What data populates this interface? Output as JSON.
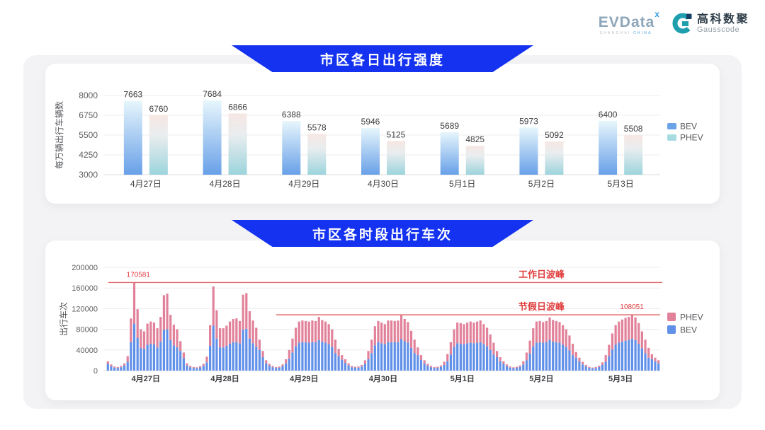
{
  "header": {
    "evdata": {
      "text": "EVData",
      "sup": "x",
      "sub_gray": "SHANGHAI",
      "sub_blue": "CHINA"
    },
    "gausscode": {
      "cn": "高科数聚",
      "en": "Gausscode"
    }
  },
  "sections": [
    {
      "title": "市区各日出行强度"
    },
    {
      "title": "市区各时段出行车次"
    }
  ],
  "colors": {
    "banner_blue": "#1432f0",
    "bev_grad_top": "#e7f6fc",
    "bev_grad_bottom": "#68a0e8",
    "phev_grad_top": "#f6e7e3",
    "phev_grad_mid": "#e9edef",
    "phev_grad_bottom": "#9cd4dc",
    "legend_bev_top": "#6ba3e9",
    "legend_phev_top": "#a6dbe2",
    "stack_bev": "#6090e8",
    "stack_phev": "#e2829a",
    "peak_line_red": "#e26a6a",
    "peak_text_red": "#e03e3e"
  },
  "chart_data": [
    {
      "type": "bar",
      "title": "市区各日出行强度",
      "ylabel": "每万辆出行车辆数",
      "categories": [
        "4月27日",
        "4月28日",
        "4月29日",
        "4月30日",
        "5月1日",
        "5月2日",
        "5月3日"
      ],
      "series": [
        {
          "name": "BEV",
          "values": [
            7663,
            7684,
            6388,
            5946,
            5689,
            5973,
            6400
          ]
        },
        {
          "name": "PHEV",
          "values": [
            6760,
            6866,
            5578,
            5125,
            4825,
            5092,
            5508
          ]
        }
      ],
      "yticks": [
        3000,
        4250,
        5500,
        6750,
        8000
      ],
      "ylim": [
        3000,
        8000
      ],
      "grid": true,
      "legend_position": "right",
      "legend": [
        "BEV",
        "PHEV"
      ]
    },
    {
      "type": "bar-stacked",
      "title": "市区各时段出行车次",
      "ylabel": "出行车次",
      "yticks": [
        0,
        40000,
        80000,
        120000,
        160000,
        200000
      ],
      "ylim": [
        0,
        200000
      ],
      "grid": true,
      "legend_position": "right",
      "legend": [
        "PHEV",
        "BEV"
      ],
      "annotations": {
        "workday_peak": {
          "label": "工作日波峰",
          "value": 170581,
          "value_label": "170581"
        },
        "holiday_peak": {
          "label": "节假日波峰",
          "value": 108051,
          "value_label": "108051"
        }
      },
      "days": [
        {
          "date": "4月27日",
          "bev": [
            13000,
            8600,
            5800,
            5000,
            6500,
            10000,
            17000,
            55000,
            91000,
            63000,
            44000,
            42000,
            50000,
            52000,
            51000,
            45000,
            56000,
            79000,
            80000,
            59000,
            49000,
            45000,
            38000,
            24000
          ],
          "phev": [
            5000,
            3400,
            2200,
            2000,
            2500,
            4000,
            11000,
            46000,
            79581,
            56000,
            36000,
            34000,
            41000,
            43000,
            42000,
            37000,
            48000,
            67000,
            69000,
            49000,
            40000,
            35000,
            19000,
            11000
          ]
        },
        {
          "date": "4月28日",
          "bev": [
            10000,
            6500,
            5000,
            4700,
            6100,
            9400,
            16000,
            48000,
            87000,
            62000,
            45000,
            45000,
            48000,
            52000,
            55000,
            55000,
            53000,
            79000,
            81000,
            62000,
            53000,
            46000,
            40000,
            26000
          ],
          "phev": [
            4000,
            2500,
            2000,
            1800,
            2400,
            3600,
            11000,
            40000,
            76000,
            55000,
            37000,
            37000,
            39000,
            43000,
            45000,
            46000,
            43000,
            68000,
            69000,
            53000,
            44000,
            37000,
            20000,
            12000
          ]
        },
        {
          "date": "4月29日",
          "bev": [
            14000,
            9400,
            6500,
            5000,
            5800,
            8600,
            14000,
            23000,
            35000,
            47000,
            54000,
            55000,
            55000,
            54000,
            55000,
            55000,
            59000,
            56000,
            54000,
            51000,
            46000,
            34000,
            28000,
            21000
          ],
          "phev": [
            6000,
            3600,
            2500,
            2000,
            2200,
            3400,
            8000,
            17000,
            27000,
            36000,
            41000,
            42000,
            41000,
            41000,
            42000,
            41000,
            45000,
            42000,
            41000,
            39000,
            34000,
            26000,
            14000,
            9000
          ]
        },
        {
          "date": "4月30日",
          "bev": [
            15000,
            10000,
            6500,
            5400,
            5800,
            7900,
            13000,
            22000,
            34000,
            49000,
            55000,
            53000,
            51000,
            55000,
            55000,
            55000,
            55000,
            61000,
            57000,
            54000,
            44000,
            34000,
            30000,
            21000
          ],
          "phev": [
            7000,
            4000,
            2500,
            2100,
            2200,
            3100,
            7000,
            16000,
            26000,
            37000,
            41000,
            40000,
            39000,
            42000,
            42000,
            41000,
            42000,
            46000,
            43000,
            40000,
            33000,
            26000,
            15000,
            9000
          ]
        },
        {
          "date": "5月1日",
          "bev": [
            14000,
            9400,
            6500,
            5000,
            5400,
            7200,
            11000,
            18000,
            31000,
            46000,
            53000,
            52000,
            51000,
            53000,
            54000,
            53000,
            54000,
            55000,
            51000,
            47000,
            40000,
            31000,
            26000,
            18000
          ],
          "phev": [
            6000,
            3600,
            2500,
            2000,
            2100,
            2800,
            6000,
            14000,
            24000,
            34000,
            40000,
            40000,
            39000,
            40000,
            41000,
            40000,
            41000,
            42000,
            39000,
            36000,
            30000,
            23000,
            12000,
            8000
          ]
        },
        {
          "date": "5月2日",
          "bev": [
            13000,
            8600,
            5800,
            4700,
            5400,
            7200,
            12000,
            20000,
            33000,
            47000,
            54000,
            55000,
            54000,
            55000,
            59000,
            56000,
            55000,
            54000,
            50000,
            46000,
            39000,
            30000,
            25000,
            18000
          ],
          "phev": [
            5000,
            3400,
            2200,
            1800,
            2100,
            2800,
            6000,
            15000,
            25000,
            35000,
            41000,
            41000,
            40000,
            41000,
            44000,
            42000,
            41000,
            40000,
            38000,
            34000,
            29000,
            22000,
            11000,
            7000
          ]
        },
        {
          "date": "5月3日",
          "bev": [
            12000,
            7900,
            5400,
            4300,
            5000,
            6800,
            11000,
            17000,
            28000,
            41000,
            50000,
            54000,
            56000,
            58000,
            59000,
            62000,
            59000,
            52000,
            43000,
            34000,
            25000,
            22000,
            18000,
            14000
          ],
          "phev": [
            5000,
            3100,
            2100,
            1700,
            2000,
            2700,
            5000,
            13000,
            22000,
            31000,
            38000,
            41000,
            43000,
            44000,
            45000,
            46051,
            44000,
            40000,
            33000,
            26000,
            19000,
            10000,
            7000,
            6000
          ]
        }
      ]
    }
  ]
}
